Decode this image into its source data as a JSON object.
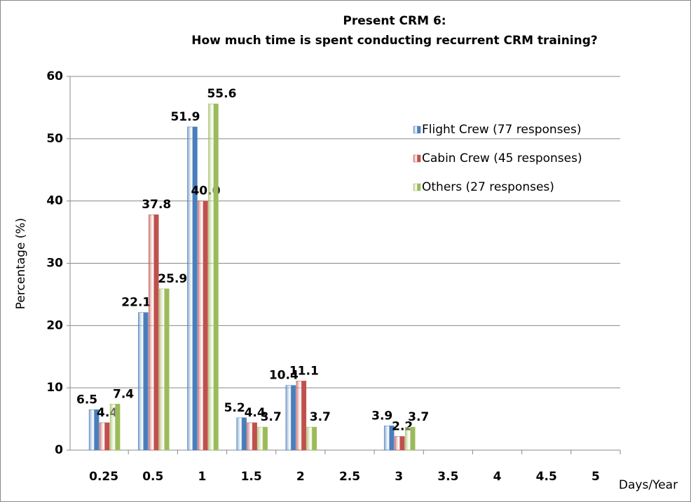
{
  "chart_data": {
    "type": "bar",
    "title": [
      "Present CRM 6:",
      "How much time is spent conducting recurrent CRM training?"
    ],
    "x_label": "Days/Year",
    "y_label": "Percentage (%)",
    "categories": [
      "0.25",
      "0.5",
      "1",
      "1.5",
      "2",
      "2.5",
      "3",
      "3.5",
      "4",
      "4.5",
      "5"
    ],
    "series": [
      {
        "name": "Flight Crew (77 responses)",
        "color": "#4a7ebb",
        "values": [
          6.5,
          22.1,
          51.9,
          5.2,
          10.4,
          null,
          3.9,
          null,
          null,
          null,
          null
        ],
        "value_labels": [
          "6.5",
          "22.1",
          "51.9",
          "5.2",
          "10.4",
          null,
          "3.9",
          null,
          null,
          null,
          null
        ]
      },
      {
        "name": "Cabin Crew (45 responses)",
        "color": "#c0504d",
        "values": [
          4.4,
          37.8,
          40.0,
          4.4,
          11.1,
          null,
          2.2,
          null,
          null,
          null,
          null
        ],
        "value_labels": [
          "4.4",
          "37.8",
          "40.0",
          "4.4",
          "11.1",
          null,
          "2.2",
          null,
          null,
          null,
          null
        ]
      },
      {
        "name": "Others (27 responses)",
        "color": "#9bbb59",
        "values": [
          7.4,
          25.9,
          55.6,
          3.7,
          3.7,
          null,
          3.7,
          null,
          null,
          null,
          null
        ],
        "value_labels": [
          "7.4",
          "25.9",
          "55.6",
          "3.7",
          "3.7",
          null,
          "3.7",
          null,
          null,
          null,
          null
        ]
      }
    ],
    "ylim": [
      0,
      60
    ],
    "yticks": [
      0,
      10,
      20,
      30,
      40,
      50,
      60
    ],
    "grid": true,
    "legend": "right"
  }
}
